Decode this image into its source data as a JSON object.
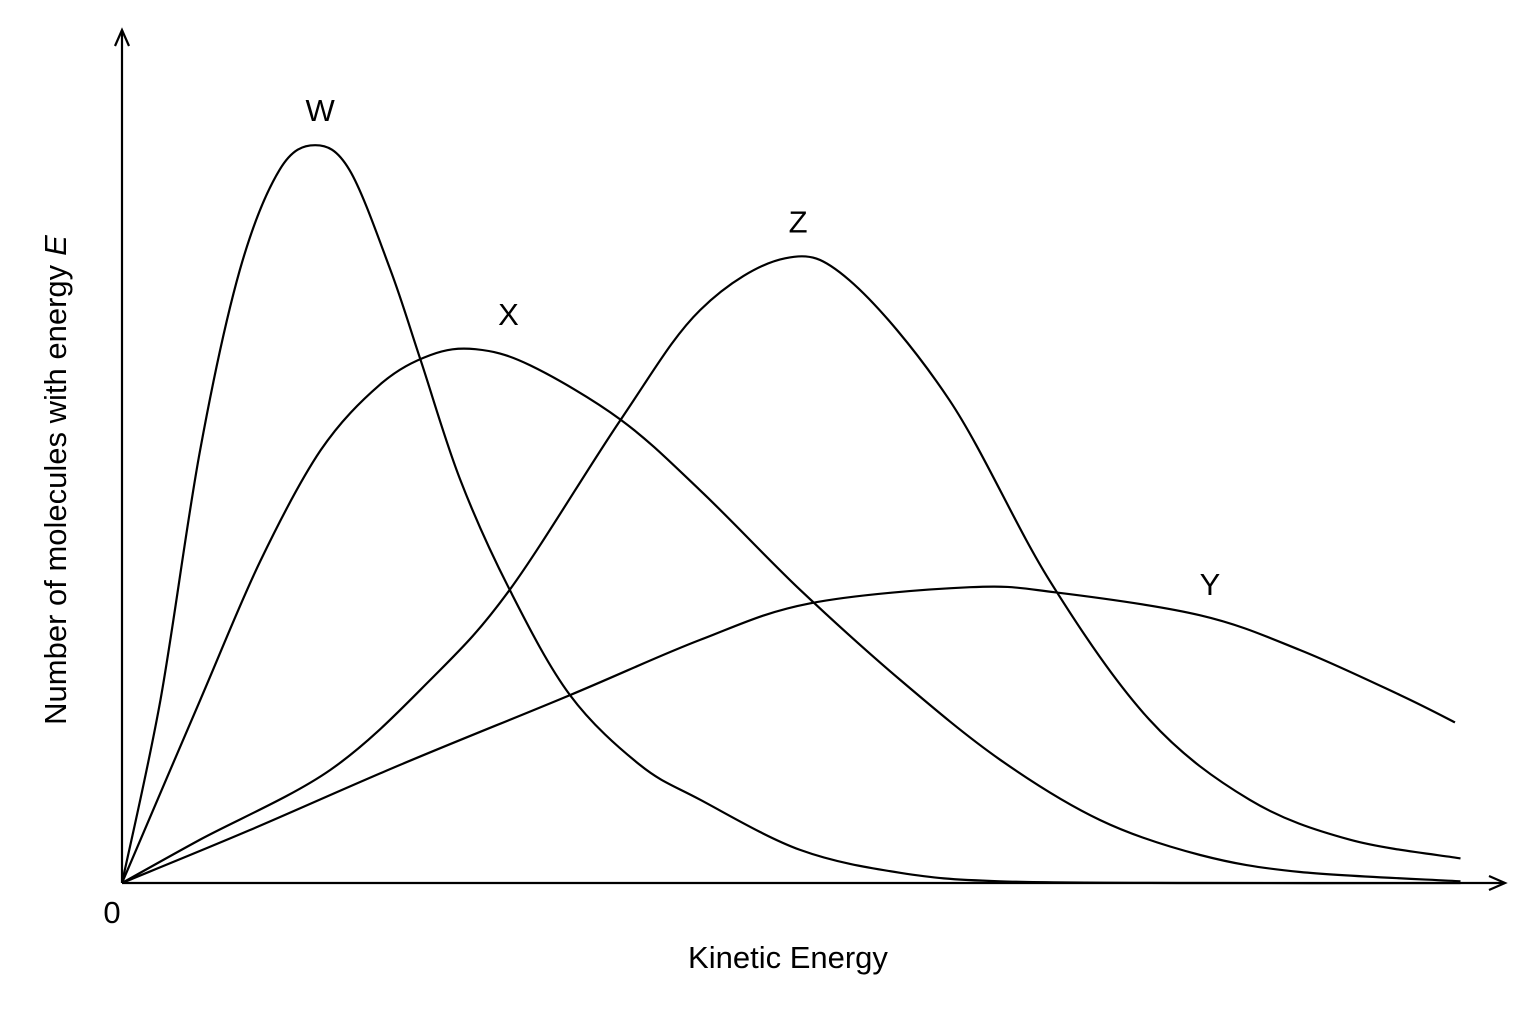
{
  "chart_data": {
    "type": "line",
    "xlabel": "Kinetic Energy",
    "ylabel": [
      "Number of molecules with energy",
      "E"
    ],
    "xlim": [
      0,
      100
    ],
    "ylim": [
      0,
      100
    ],
    "xticks": [
      0
    ],
    "color": "#000000",
    "series": [
      {
        "name": "W",
        "color": "#000000",
        "x": [
          0,
          2.8,
          5.7,
          8.6,
          11.5,
          14.1,
          16.6,
          19.6,
          21.8,
          24.7,
          28.3,
          32.7,
          37.8,
          42.2,
          49.5,
          56.8,
          64.1,
          78.7,
          97.7
        ],
        "values": [
          0,
          21.5,
          50.9,
          72.1,
          83.9,
          86.8,
          83.9,
          72.1,
          61.5,
          47.4,
          34.5,
          22.1,
          13.9,
          9.8,
          3.9,
          1.2,
          0.2,
          0,
          0
        ]
      },
      {
        "name": "X",
        "color": "#000000",
        "x": [
          0,
          5.7,
          10.1,
          14.5,
          18.8,
          22.5,
          25.8,
          29.8,
          36.4,
          42.2,
          49.5,
          56.8,
          64.1,
          71.4,
          78.7,
          86.0,
          97.7
        ],
        "values": [
          0,
          21.5,
          37.9,
          50.9,
          58.6,
          62.1,
          62.8,
          60.9,
          54.5,
          46.2,
          34.5,
          23.9,
          14.5,
          7.4,
          3.3,
          1.3,
          0.2
        ]
      },
      {
        "name": "Z",
        "color": "#000000",
        "x": [
          0,
          5.7,
          15.2,
          22.5,
          28.3,
          36.4,
          42.2,
          48.4,
          53.1,
          60.4,
          67.7,
          75.0,
          82.3,
          89.6,
          97.7
        ],
        "values": [
          0,
          5.1,
          13.3,
          23.9,
          34.5,
          54.5,
          67.4,
          73.5,
          70.9,
          56.8,
          35.6,
          19.2,
          9.8,
          5.1,
          2.9
        ]
      },
      {
        "name": "Y",
        "color": "#000000",
        "x": [
          0,
          9.3,
          20.3,
          32.7,
          42.2,
          50.2,
          61.9,
          68.1,
          78.7,
          86.0,
          93.3,
          97.3
        ],
        "values": [
          0,
          6.2,
          13.9,
          22.1,
          28.6,
          32.9,
          34.8,
          34.2,
          31.5,
          27.4,
          22.1,
          18.9
        ]
      }
    ]
  }
}
